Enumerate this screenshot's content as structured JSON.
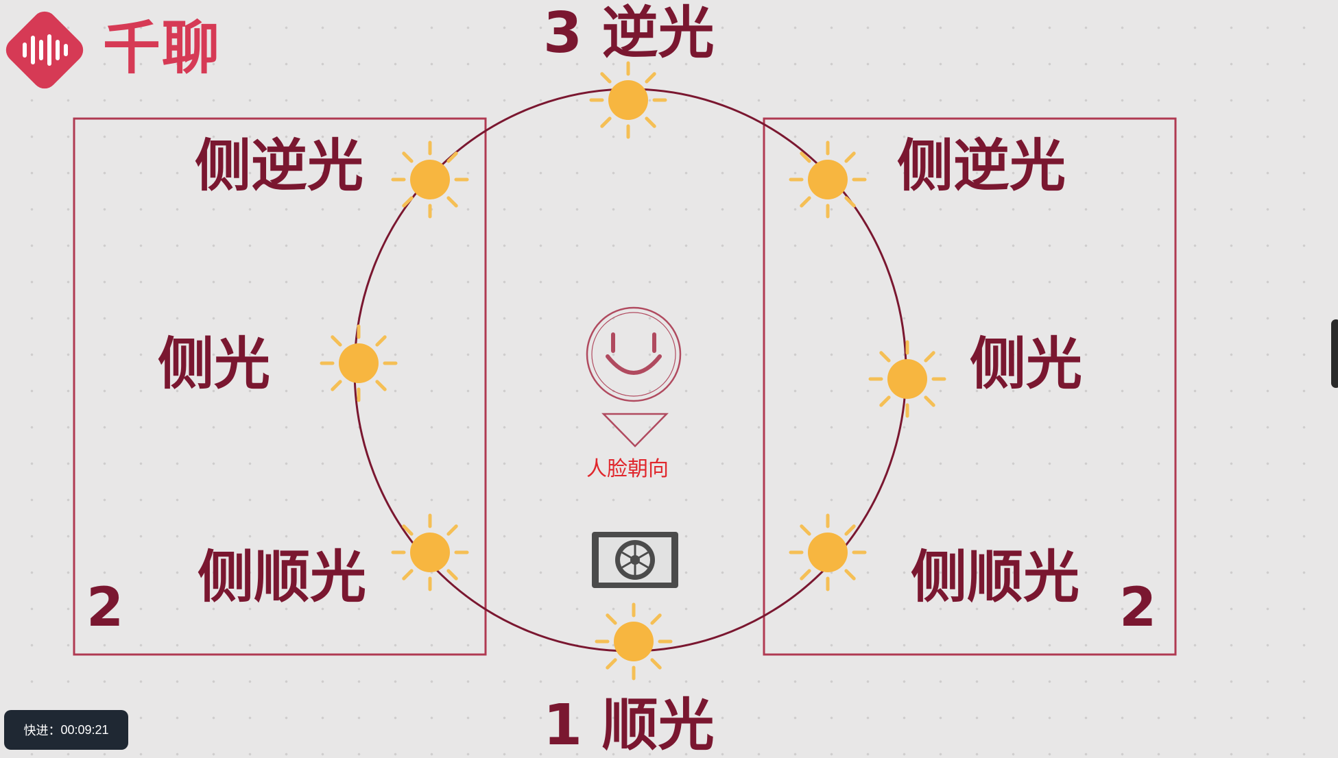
{
  "logo": {
    "brand_text": "千聊",
    "brand_color": "#d63a55",
    "icon": "audio-wave-diamond-icon"
  },
  "positions": {
    "top": "3 逆光",
    "bottom": "1 顺光"
  },
  "left_panel": {
    "items": [
      "侧逆光",
      "侧光",
      "侧顺光"
    ],
    "number": "2"
  },
  "right_panel": {
    "items": [
      "侧逆光",
      "侧光",
      "侧顺光"
    ],
    "number": "2"
  },
  "center": {
    "face_icon": "smiley-face-icon",
    "direction_icon": "triangle-down-icon",
    "face_label": "人脸朝向",
    "camera_icon": "camera-aperture-icon"
  },
  "progress": {
    "label": "快进：",
    "time": "00:09:21"
  },
  "colors": {
    "line": "#7a1730",
    "box": "#b03a52",
    "sun": "#f7b640",
    "sun_ray": "#f5bf55",
    "face": "#b04a5f",
    "label_red": "#e0262c"
  }
}
